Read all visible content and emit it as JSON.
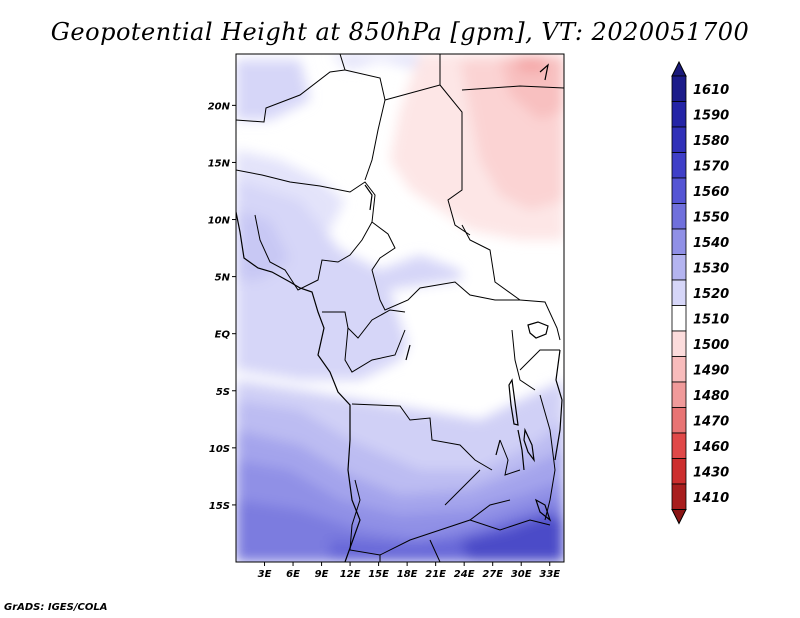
{
  "title": "Geopotential Height at 850hPa [gpm], VT: 2020051700",
  "credit": "GrADS: IGES/COLA",
  "map": {
    "lon_range": [
      0,
      34.5
    ],
    "lat_range": [
      -20,
      24.5
    ],
    "x_ticks": [
      {
        "value": 3,
        "label": "3E"
      },
      {
        "value": 6,
        "label": "6E"
      },
      {
        "value": 9,
        "label": "9E"
      },
      {
        "value": 12,
        "label": "12E"
      },
      {
        "value": 15,
        "label": "15E"
      },
      {
        "value": 18,
        "label": "18E"
      },
      {
        "value": 21,
        "label": "21E"
      },
      {
        "value": 24,
        "label": "24E"
      },
      {
        "value": 27,
        "label": "27E"
      },
      {
        "value": 30,
        "label": "30E"
      },
      {
        "value": 33,
        "label": "33E"
      }
    ],
    "y_ticks": [
      {
        "value": 20,
        "label": "20N"
      },
      {
        "value": 15,
        "label": "15N"
      },
      {
        "value": 10,
        "label": "10N"
      },
      {
        "value": 5,
        "label": "5N"
      },
      {
        "value": 0,
        "label": "EQ"
      },
      {
        "value": -5,
        "label": "5S"
      },
      {
        "value": -10,
        "label": "10S"
      },
      {
        "value": -15,
        "label": "15S"
      }
    ]
  },
  "colorbar": {
    "levels": [
      {
        "label": "1610",
        "color": "#1c1c8a"
      },
      {
        "label": "1590",
        "color": "#2424a6"
      },
      {
        "label": "1580",
        "color": "#3030b8"
      },
      {
        "label": "1570",
        "color": "#3f3fc8"
      },
      {
        "label": "1560",
        "color": "#5555d4"
      },
      {
        "label": "1550",
        "color": "#7070dc"
      },
      {
        "label": "1540",
        "color": "#9090e6"
      },
      {
        "label": "1530",
        "color": "#b4b4f0"
      },
      {
        "label": "1520",
        "color": "#d6d6f8"
      },
      {
        "label": "1510",
        "color": "#ffffff"
      },
      {
        "label": "1500",
        "color": "#fcdcdc"
      },
      {
        "label": "1490",
        "color": "#f8bcbc"
      },
      {
        "label": "1480",
        "color": "#f09a9a"
      },
      {
        "label": "1470",
        "color": "#e87474"
      },
      {
        "label": "1460",
        "color": "#e04848"
      },
      {
        "label": "1430",
        "color": "#cc2e2e"
      },
      {
        "label": "1410",
        "color": "#a81e1e"
      }
    ],
    "top_cap_color": "#1a1a7a",
    "bottom_cap_color": "#8a1414"
  }
}
